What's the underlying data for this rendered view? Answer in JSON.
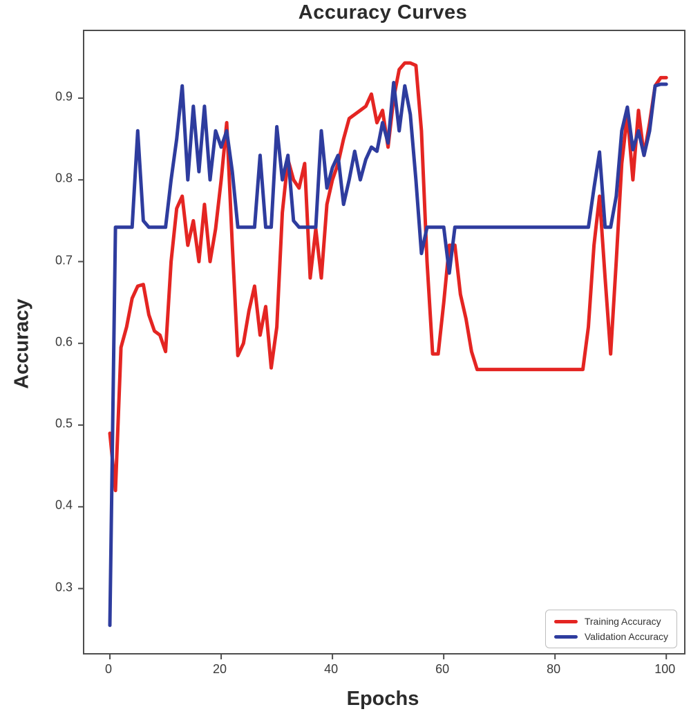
{
  "chart_data": {
    "type": "line",
    "title": "Accuracy Curves",
    "xlabel": "Epochs",
    "ylabel": "Accuracy",
    "grid": false,
    "legend_position": "lower right",
    "xlim": [
      -4.6,
      103.2
    ],
    "ylim": [
      0.221,
      0.982
    ],
    "x_ticks": [
      "0",
      "20",
      "40",
      "60",
      "80",
      "100"
    ],
    "y_ticks": [
      "0.3",
      "0.4",
      "0.5",
      "0.6",
      "0.7",
      "0.8",
      "0.9"
    ],
    "x": [
      0,
      1,
      2,
      3,
      4,
      5,
      6,
      7,
      8,
      9,
      10,
      11,
      12,
      13,
      14,
      15,
      16,
      17,
      18,
      19,
      20,
      21,
      22,
      23,
      24,
      25,
      26,
      27,
      28,
      29,
      30,
      31,
      32,
      33,
      34,
      35,
      36,
      37,
      38,
      39,
      40,
      41,
      42,
      43,
      44,
      45,
      46,
      47,
      48,
      49,
      50,
      51,
      52,
      53,
      54,
      55,
      56,
      57,
      58,
      59,
      60,
      61,
      62,
      63,
      64,
      65,
      66,
      67,
      68,
      69,
      70,
      71,
      72,
      73,
      74,
      75,
      76,
      77,
      78,
      79,
      80,
      81,
      82,
      83,
      84,
      85,
      86,
      87,
      88,
      89,
      90,
      91,
      92,
      93,
      94,
      95,
      96,
      97,
      98,
      99,
      100
    ],
    "series": [
      {
        "name": "Training Accuracy",
        "color": "#e42522",
        "values": [
          0.49,
          0.42,
          0.595,
          0.62,
          0.655,
          0.67,
          0.672,
          0.635,
          0.615,
          0.61,
          0.59,
          0.7,
          0.765,
          0.78,
          0.72,
          0.75,
          0.7,
          0.77,
          0.7,
          0.74,
          0.8,
          0.87,
          0.72,
          0.585,
          0.6,
          0.64,
          0.67,
          0.61,
          0.645,
          0.57,
          0.62,
          0.76,
          0.825,
          0.8,
          0.79,
          0.82,
          0.68,
          0.74,
          0.68,
          0.77,
          0.8,
          0.82,
          0.85,
          0.875,
          0.88,
          0.885,
          0.89,
          0.905,
          0.87,
          0.885,
          0.84,
          0.9,
          0.935,
          0.943,
          0.943,
          0.94,
          0.86,
          0.7,
          0.587,
          0.587,
          0.65,
          0.72,
          0.72,
          0.66,
          0.63,
          0.59,
          0.568,
          0.568,
          0.568,
          0.568,
          0.568,
          0.568,
          0.568,
          0.568,
          0.568,
          0.568,
          0.568,
          0.568,
          0.568,
          0.568,
          0.568,
          0.568,
          0.568,
          0.568,
          0.568,
          0.568,
          0.62,
          0.72,
          0.78,
          0.68,
          0.587,
          0.7,
          0.82,
          0.88,
          0.8,
          0.885,
          0.83,
          0.87,
          0.915,
          0.925,
          0.925
        ]
      },
      {
        "name": "Validation Accuracy",
        "color": "#2e3c9e",
        "values": [
          0.255,
          0.742,
          0.742,
          0.742,
          0.742,
          0.86,
          0.75,
          0.742,
          0.742,
          0.742,
          0.742,
          0.8,
          0.85,
          0.915,
          0.8,
          0.89,
          0.81,
          0.89,
          0.8,
          0.86,
          0.84,
          0.86,
          0.81,
          0.742,
          0.742,
          0.742,
          0.742,
          0.83,
          0.742,
          0.742,
          0.865,
          0.8,
          0.83,
          0.75,
          0.742,
          0.742,
          0.742,
          0.742,
          0.86,
          0.79,
          0.815,
          0.83,
          0.77,
          0.8,
          0.835,
          0.8,
          0.825,
          0.84,
          0.835,
          0.87,
          0.845,
          0.919,
          0.86,
          0.915,
          0.88,
          0.8,
          0.71,
          0.742,
          0.742,
          0.742,
          0.742,
          0.686,
          0.742,
          0.742,
          0.742,
          0.742,
          0.742,
          0.742,
          0.742,
          0.742,
          0.742,
          0.742,
          0.742,
          0.742,
          0.742,
          0.742,
          0.742,
          0.742,
          0.742,
          0.742,
          0.742,
          0.742,
          0.742,
          0.742,
          0.742,
          0.742,
          0.742,
          0.79,
          0.834,
          0.742,
          0.742,
          0.78,
          0.86,
          0.889,
          0.837,
          0.86,
          0.83,
          0.86,
          0.915,
          0.917,
          0.917
        ]
      }
    ]
  }
}
